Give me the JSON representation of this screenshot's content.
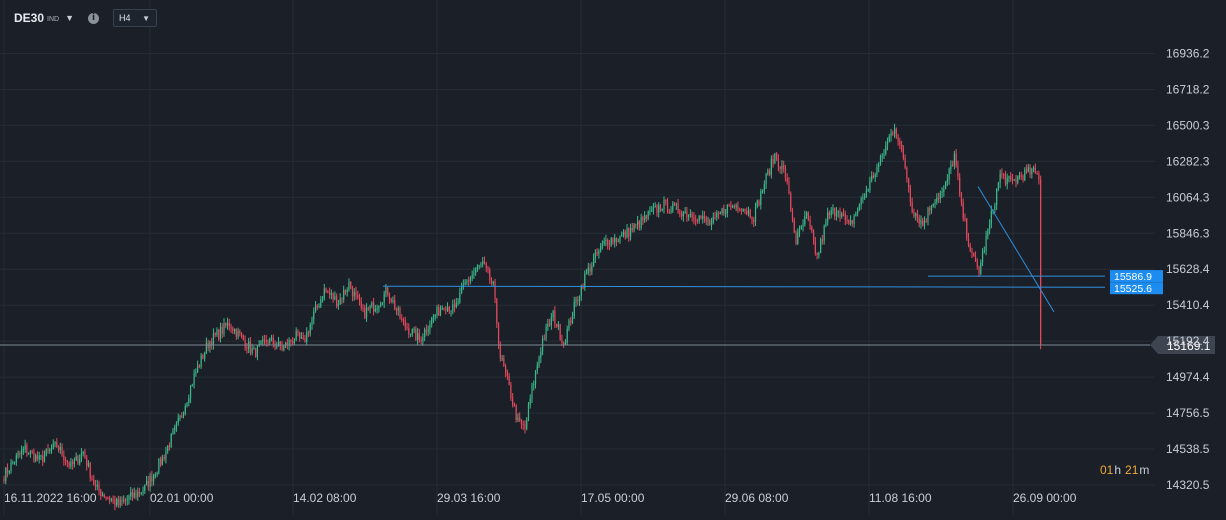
{
  "toolbar": {
    "symbol": "DE30",
    "symbol_type": "IND",
    "timeframe": "H4",
    "icons": [
      "dropdown-caret-icon",
      "info-icon",
      "dropdown-caret-icon"
    ]
  },
  "countdown": {
    "hours": "01",
    "hours_unit": "h",
    "minutes": "21",
    "minutes_unit": "m"
  },
  "colors": {
    "background": "#1b2028",
    "grid": "#262c35",
    "up_candle": "#3cb88a",
    "down_candle": "#e5495c",
    "drawing": "#2f8fe0",
    "label_blue": "#1c8cf0",
    "current_price_line": "#7e8793",
    "current_price_label": "#3e4550"
  },
  "chart_data": {
    "type": "candlestick",
    "instrument": "DE30",
    "timeframe": "H4",
    "y_range": [
      14250,
      17150
    ],
    "y_ticks": [
      14320.5,
      14538.5,
      14756.5,
      14974.4,
      15192.4,
      15410.4,
      15628.4,
      15846.3,
      16064.3,
      16282.3,
      16500.3,
      16718.2,
      16936.2
    ],
    "x_labels": [
      "16.11.2022  16:00",
      "02.01  00:00",
      "14.02  08:00",
      "29.03  16:00",
      "17.05  00:00",
      "29.06  08:00",
      "11.08  16:00",
      "26.09  00:00"
    ],
    "candle_count": 590,
    "price_anchors": [
      [
        0,
        14380
      ],
      [
        6,
        14470
      ],
      [
        12,
        14540
      ],
      [
        20,
        14470
      ],
      [
        30,
        14560
      ],
      [
        38,
        14430
      ],
      [
        45,
        14520
      ],
      [
        52,
        14300
      ],
      [
        65,
        14200
      ],
      [
        80,
        14300
      ],
      [
        90,
        14480
      ],
      [
        100,
        14720
      ],
      [
        108,
        14980
      ],
      [
        116,
        15180
      ],
      [
        124,
        15260
      ],
      [
        128,
        15300
      ],
      [
        136,
        15200
      ],
      [
        142,
        15120
      ],
      [
        150,
        15200
      ],
      [
        158,
        15150
      ],
      [
        166,
        15220
      ],
      [
        170,
        15180
      ],
      [
        176,
        15350
      ],
      [
        182,
        15500
      ],
      [
        190,
        15430
      ],
      [
        196,
        15540
      ],
      [
        204,
        15360
      ],
      [
        212,
        15420
      ],
      [
        218,
        15500
      ],
      [
        226,
        15310
      ],
      [
        236,
        15200
      ],
      [
        242,
        15310
      ],
      [
        250,
        15420
      ],
      [
        256,
        15380
      ],
      [
        262,
        15540
      ],
      [
        268,
        15620
      ],
      [
        272,
        15660
      ],
      [
        278,
        15520
      ],
      [
        282,
        15100
      ],
      [
        286,
        14950
      ],
      [
        292,
        14700
      ],
      [
        296,
        14660
      ],
      [
        300,
        14900
      ],
      [
        306,
        15200
      ],
      [
        312,
        15350
      ],
      [
        318,
        15180
      ],
      [
        324,
        15400
      ],
      [
        330,
        15580
      ],
      [
        336,
        15700
      ],
      [
        342,
        15800
      ],
      [
        350,
        15820
      ],
      [
        358,
        15880
      ],
      [
        366,
        15950
      ],
      [
        374,
        16020
      ],
      [
        382,
        15990
      ],
      [
        392,
        15960
      ],
      [
        402,
        15900
      ],
      [
        410,
        16000
      ],
      [
        418,
        16020
      ],
      [
        426,
        15950
      ],
      [
        432,
        16150
      ],
      [
        438,
        16320
      ],
      [
        444,
        16200
      ],
      [
        450,
        15800
      ],
      [
        456,
        15950
      ],
      [
        462,
        15700
      ],
      [
        468,
        15950
      ],
      [
        474,
        16000
      ],
      [
        480,
        15880
      ],
      [
        488,
        16060
      ],
      [
        494,
        16200
      ],
      [
        498,
        16280
      ],
      [
        502,
        16400
      ],
      [
        506,
        16500
      ],
      [
        512,
        16250
      ],
      [
        516,
        16000
      ],
      [
        522,
        15900
      ],
      [
        528,
        16050
      ],
      [
        534,
        16100
      ],
      [
        540,
        16320
      ],
      [
        544,
        16000
      ],
      [
        550,
        15700
      ],
      [
        554,
        15620
      ],
      [
        560,
        15900
      ],
      [
        566,
        16200
      ],
      [
        572,
        16150
      ],
      [
        578,
        16200
      ],
      [
        584,
        16220
      ],
      [
        590,
        16180
      ]
    ],
    "drawings": {
      "horizontal_lines": [
        15525.6,
        15586.9
      ],
      "price_labels": [
        "15586.9",
        "15525.6"
      ],
      "trendline": {
        "from": [
          "26.09",
          16130
        ],
        "to": [
          "after 26.09",
          15370
        ]
      }
    },
    "current_price": 15169.1,
    "current_price_label": "15169.1"
  }
}
